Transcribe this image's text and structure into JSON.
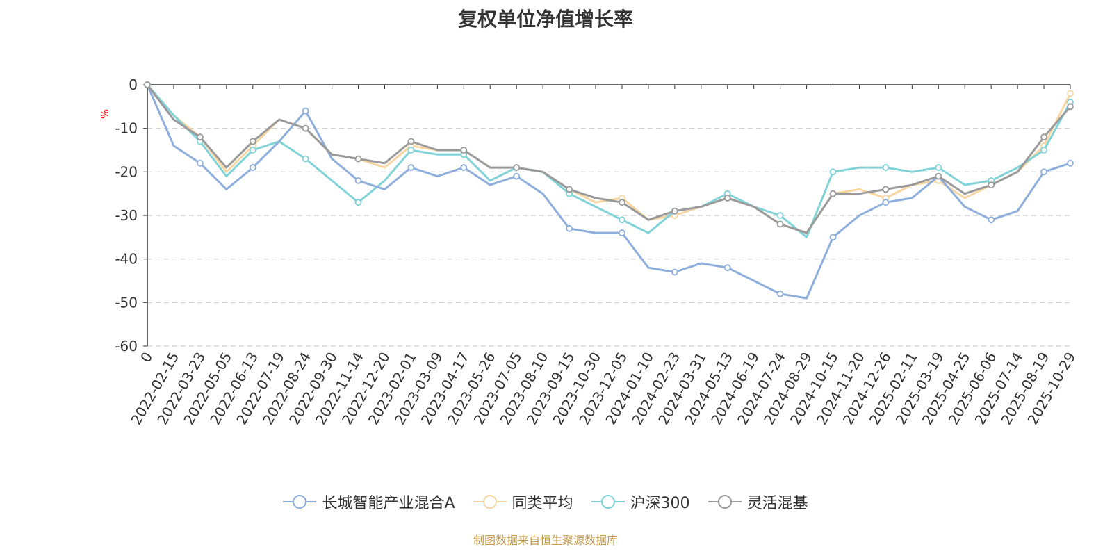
{
  "title": "复权单位净值增长率",
  "source": "制图数据来自恒生聚源数据库",
  "colors": {
    "fund": "#8eaedb",
    "peer_avg": "#f7d6a1",
    "csi300": "#82d3d8",
    "flex_mixed": "#9a9a9a",
    "yunit": "#ff0000"
  },
  "chart_data": {
    "type": "line",
    "title": "复权单位净值增长率",
    "ylabel": "%",
    "ylim": [
      -60,
      0
    ],
    "yticks": [
      0,
      -10,
      -20,
      -30,
      -40,
      -50,
      -60
    ],
    "grid": true,
    "legend_position": "bottom-center",
    "x": [
      "0",
      "2022-02-15",
      "2022-03-23",
      "2022-05-05",
      "2022-06-13",
      "2022-07-19",
      "2022-08-24",
      "2022-09-30",
      "2022-11-14",
      "2022-12-20",
      "2023-02-01",
      "2023-03-09",
      "2023-04-17",
      "2023-05-26",
      "2023-07-05",
      "2023-08-10",
      "2023-09-15",
      "2023-10-30",
      "2023-12-05",
      "2024-01-10",
      "2024-02-23",
      "2024-03-31",
      "2024-05-13",
      "2024-06-19",
      "2024-07-24",
      "2024-08-29",
      "2024-10-15",
      "2024-11-20",
      "2024-12-26",
      "2025-02-11",
      "2025-03-19",
      "2025-04-25",
      "2025-06-06",
      "2025-07-14",
      "2025-08-19",
      "2025-10-29"
    ],
    "series": [
      {
        "name": "长城智能产业混合A",
        "color_key": "fund",
        "values": [
          0,
          -14,
          -18,
          -24,
          -19,
          -13,
          -6,
          -17,
          -22,
          -24,
          -19,
          -21,
          -19,
          -23,
          -21,
          -25,
          -33,
          -34,
          -34,
          -42,
          -43,
          -41,
          -42,
          -45,
          -48,
          -49,
          -35,
          -30,
          -27,
          -26,
          -21,
          -28,
          -31,
          -29,
          -20,
          -18
        ]
      },
      {
        "name": "同类平均",
        "color_key": "peer_avg",
        "values": [
          0,
          -7,
          -12,
          -20,
          -14,
          -8,
          -10,
          -16,
          -17,
          -19,
          -14,
          -15,
          -15,
          -19,
          -19,
          -20,
          -24,
          -27,
          -26,
          -31,
          -30,
          -28,
          -26,
          -28,
          -32,
          -34,
          -25,
          -24,
          -26,
          -23,
          -22,
          -26,
          -23,
          -20,
          -14,
          -2
        ]
      },
      {
        "name": "沪深300",
        "color_key": "csi300",
        "values": [
          0,
          -7,
          -13,
          -21,
          -15,
          -13,
          -17,
          -22,
          -27,
          -22,
          -15,
          -16,
          -16,
          -22,
          -19,
          -20,
          -25,
          -28,
          -31,
          -34,
          -29,
          -28,
          -25,
          -28,
          -30,
          -35,
          -20,
          -19,
          -19,
          -20,
          -19,
          -23,
          -22,
          -19,
          -15,
          -4
        ]
      },
      {
        "name": "灵活混基",
        "color_key": "flex_mixed",
        "values": [
          0,
          -8,
          -12,
          -19,
          -13,
          -8,
          -10,
          -16,
          -17,
          -18,
          -13,
          -15,
          -15,
          -19,
          -19,
          -20,
          -24,
          -26,
          -27,
          -31,
          -29,
          -28,
          -26,
          -28,
          -32,
          -34,
          -25,
          -25,
          -24,
          -23,
          -21,
          -25,
          -23,
          -20,
          -12,
          -5
        ]
      }
    ]
  }
}
